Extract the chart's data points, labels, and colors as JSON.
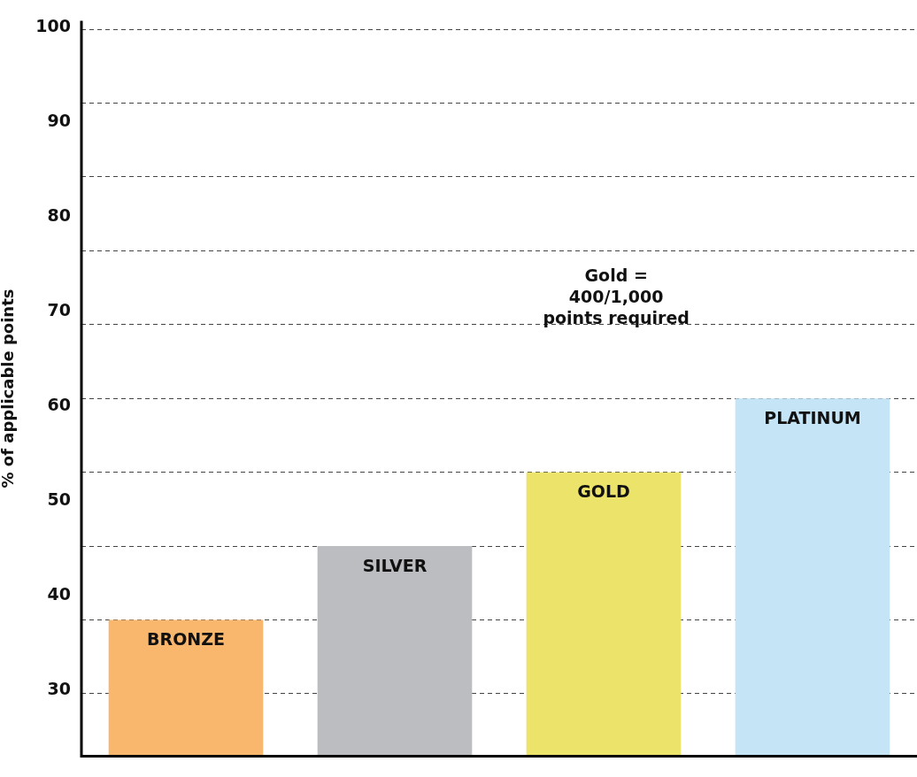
{
  "chart_data": {
    "type": "bar",
    "ylabel": "% of applicable points",
    "categories": [
      "BRONZE",
      "SILVER",
      "GOLD",
      "PLATINUM"
    ],
    "values": [
      37.4,
      45.2,
      53,
      60.8
    ],
    "colors": [
      "#f9b66d",
      "#bcbdc0",
      "#ece46a",
      "#c5e5f7"
    ],
    "ylim": [
      23,
      100.7
    ],
    "yticks": [
      30,
      40,
      50,
      60,
      70,
      80,
      90,
      100,
      {
        "value": 29.6,
        "label": null
      },
      {
        "value": 37.4,
        "label": null
      },
      {
        "value": 45.2,
        "label": null
      },
      {
        "value": 53,
        "label": null
      },
      {
        "value": 60.8,
        "label": null
      },
      {
        "value": 68.6,
        "label": null
      },
      {
        "value": 76.4,
        "label": null
      },
      {
        "value": 84.2,
        "label": null
      },
      {
        "value": 92,
        "label": null
      },
      {
        "value": 99.8,
        "label": null
      }
    ],
    "grid": "y",
    "tick_labels": "y",
    "legend": false,
    "annotations": [
      "Gold =\n400/1,000\npoints required"
    ]
  }
}
